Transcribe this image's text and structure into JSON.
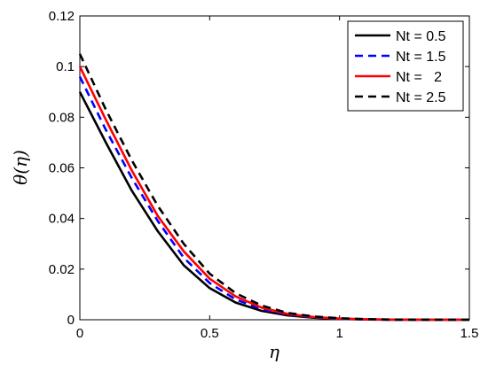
{
  "chart_data": {
    "type": "line",
    "title": "",
    "xlabel": "η",
    "ylabel": "θ(η)",
    "xlim": [
      0,
      1.5
    ],
    "ylim": [
      0,
      0.12
    ],
    "xticks": [
      0,
      0.5,
      1,
      1.5
    ],
    "xtick_labels": [
      "0",
      "0.5",
      "1",
      "1.5"
    ],
    "yticks": [
      0,
      0.02,
      0.04,
      0.06,
      0.08,
      0.1,
      0.12
    ],
    "ytick_labels": [
      "0",
      "0.02",
      "0.04",
      "0.06",
      "0.08",
      "0.1",
      "0.12"
    ],
    "grid": false,
    "legend_position": "top-right",
    "x": [
      0,
      0.1,
      0.2,
      0.3,
      0.4,
      0.5,
      0.6,
      0.7,
      0.8,
      0.9,
      1.0,
      1.1,
      1.2,
      1.3,
      1.4,
      1.5
    ],
    "series": [
      {
        "name": "Nt = 0.5",
        "color": "#000000",
        "dash": "solid",
        "values": [
          0.09,
          0.07,
          0.051,
          0.035,
          0.0215,
          0.0125,
          0.0068,
          0.0035,
          0.0017,
          0.0008,
          0.0003,
          0.0001,
          4e-05,
          1e-05,
          0,
          0
        ]
      },
      {
        "name": "Nt = 1.5",
        "color": "#0000ff",
        "dash": "dashed",
        "values": [
          0.096,
          0.075,
          0.056,
          0.039,
          0.0245,
          0.0145,
          0.008,
          0.0042,
          0.002,
          0.0009,
          0.0004,
          0.00015,
          5e-05,
          1e-05,
          0,
          0
        ]
      },
      {
        "name": "Nt =   2",
        "color": "#ff0000",
        "dash": "solid",
        "values": [
          0.1,
          0.079,
          0.059,
          0.041,
          0.027,
          0.0162,
          0.0092,
          0.0048,
          0.0023,
          0.0011,
          0.0005,
          0.0002,
          7e-05,
          2e-05,
          0,
          0
        ]
      },
      {
        "name": "Nt = 2.5",
        "color": "#000000",
        "dash": "dashed",
        "values": [
          0.105,
          0.083,
          0.063,
          0.045,
          0.03,
          0.0182,
          0.0105,
          0.0056,
          0.0027,
          0.0013,
          0.0006,
          0.00025,
          8e-05,
          2e-05,
          0,
          0
        ]
      }
    ]
  }
}
